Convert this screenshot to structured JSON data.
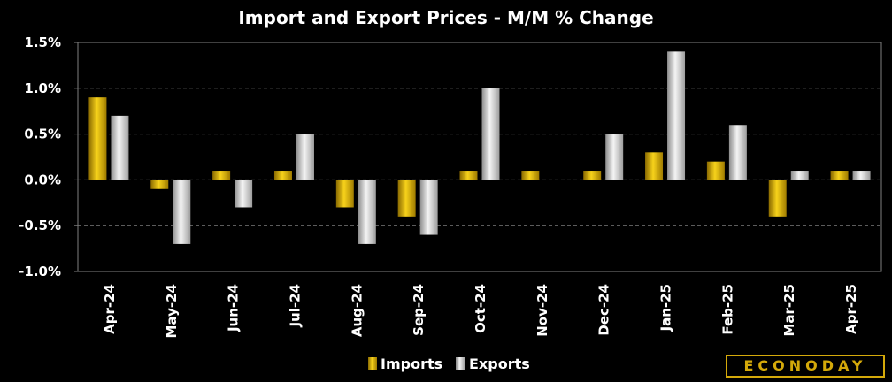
{
  "chart_data": {
    "type": "bar",
    "title": "Import and Export Prices - M/M % Change",
    "categories": [
      "Apr-24",
      "May-24",
      "Jun-24",
      "Jul-24",
      "Aug-24",
      "Sep-24",
      "Oct-24",
      "Nov-24",
      "Dec-24",
      "Jan-25",
      "Feb-25",
      "Mar-25",
      "Apr-25"
    ],
    "series": [
      {
        "name": "Imports",
        "values": [
          0.9,
          -0.1,
          0.1,
          0.1,
          -0.3,
          -0.4,
          0.1,
          0.1,
          0.1,
          0.3,
          0.2,
          -0.4,
          0.1
        ]
      },
      {
        "name": "Exports",
        "values": [
          0.7,
          -0.7,
          -0.3,
          0.5,
          -0.7,
          -0.6,
          1.0,
          0.0,
          0.5,
          1.4,
          0.6,
          0.1,
          0.1
        ]
      }
    ],
    "yticks": [
      "1.5%",
      "1.0%",
      "0.5%",
      "0.0%",
      "-0.5%",
      "-1.0%"
    ],
    "ytick_values": [
      1.5,
      1.0,
      0.5,
      0.0,
      -0.5,
      -1.0
    ],
    "ylim": [
      -1.0,
      1.5
    ],
    "grid": "horizontal dashed",
    "legend_position": "bottom-center",
    "colors": {
      "Imports": "#d4a90a",
      "Exports": "#bfbfbf",
      "background": "#000000",
      "plot_border": "#808080"
    }
  },
  "logo": {
    "text": "ECONODAY"
  }
}
